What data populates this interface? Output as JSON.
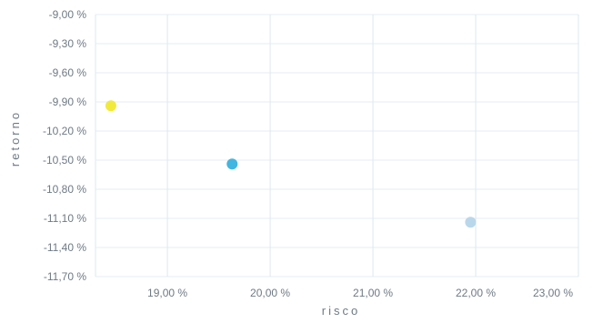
{
  "chart_data": {
    "type": "scatter",
    "xlabel": "risco",
    "ylabel": "retorno",
    "xlim": [
      18.3,
      23.0
    ],
    "ylim": [
      -11.7,
      -9.0
    ],
    "x_ticks": [
      19.0,
      20.0,
      21.0,
      22.0,
      23.0
    ],
    "y_ticks": [
      -9.0,
      -9.3,
      -9.6,
      -9.9,
      -10.2,
      -10.5,
      -10.8,
      -11.1,
      -11.4,
      -11.7
    ],
    "x_tick_labels": [
      "19,00 %",
      "20,00 %",
      "21,00 %",
      "22,00 %",
      "23,00 %"
    ],
    "y_tick_labels": [
      "-9,00 %",
      "-9,30 %",
      "-9,60 %",
      "-9,90 %",
      "-10,20 %",
      "-10,50 %",
      "-10,80 %",
      "-11,10 %",
      "-11,40 %",
      "-11,70 %"
    ],
    "grid": true,
    "legend": "none",
    "points": [
      {
        "x": 18.45,
        "y": -9.94,
        "color": "#f2ea3a"
      },
      {
        "x": 19.63,
        "y": -10.54,
        "color": "#41b6e0"
      },
      {
        "x": 21.95,
        "y": -11.14,
        "color": "#b9d7ea"
      }
    ]
  }
}
